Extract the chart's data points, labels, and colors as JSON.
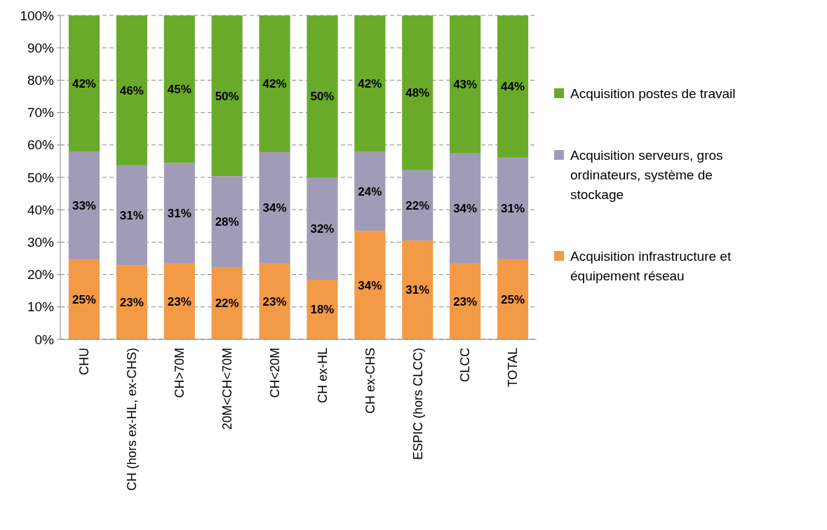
{
  "chart_data": {
    "type": "bar",
    "stacked": true,
    "categories": [
      "CHU",
      "CH (hors ex-HL, ex-CHS)",
      "CH>70M",
      "20M<CH<70M",
      "CH<20M",
      "CH ex-HL",
      "CH ex-CHS",
      "ESPIC (hors CLCC)",
      "CLCC",
      "TOTAL"
    ],
    "series": [
      {
        "name": "Acquisition infrastructure et équipement réseau",
        "color": "#f39a46",
        "values": [
          24.7,
          22.9,
          23.4,
          22.3,
          23.4,
          18.4,
          33.5,
          30.5,
          23.4,
          24.7
        ],
        "value_labels": [
          "25%",
          "23%",
          "23%",
          "22%",
          "23%",
          "18%",
          "34%",
          "31%",
          "23%",
          "25%"
        ]
      },
      {
        "name": "Acquisition serveurs, gros ordinateurs, système de stockage",
        "color": "#a09cb8",
        "values": [
          33.3,
          30.8,
          31.1,
          28.1,
          34.4,
          31.6,
          24.5,
          21.7,
          34.0,
          31.4
        ],
        "value_labels": [
          "33%",
          "31%",
          "31%",
          "28%",
          "34%",
          "32%",
          "24%",
          "22%",
          "34%",
          "31%"
        ]
      },
      {
        "name": "Acquisition postes de travail",
        "color": "#6aaa2a",
        "values": [
          42.0,
          46.3,
          45.5,
          49.6,
          42.2,
          50.0,
          42.0,
          47.8,
          42.6,
          43.9
        ],
        "value_labels": [
          "42%",
          "46%",
          "45%",
          "50%",
          "42%",
          "50%",
          "42%",
          "48%",
          "43%",
          "44%"
        ]
      }
    ],
    "ylim": [
      0,
      100
    ],
    "yticks": [
      {
        "value": 0,
        "label": "0%"
      },
      {
        "value": 10,
        "label": "10%"
      },
      {
        "value": 20,
        "label": "20%"
      },
      {
        "value": 30,
        "label": "30%"
      },
      {
        "value": 40,
        "label": "40%"
      },
      {
        "value": 50,
        "label": "50%"
      },
      {
        "value": 60,
        "label": "60%"
      },
      {
        "value": 70,
        "label": "70%"
      },
      {
        "value": 80,
        "label": "80%"
      },
      {
        "value": 90,
        "label": "90%"
      },
      {
        "value": 100,
        "label": "100%"
      }
    ],
    "grid": "y",
    "legend": "right"
  }
}
